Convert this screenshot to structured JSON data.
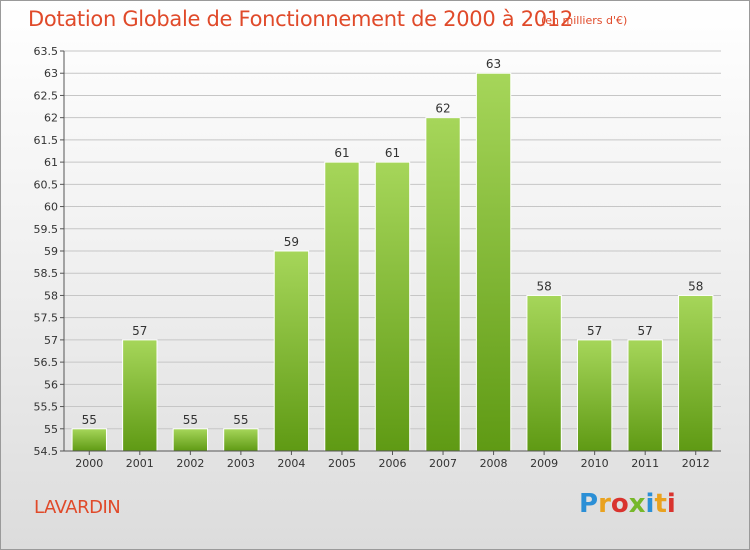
{
  "header": {
    "title": "Dotation Globale de Fonctionnement de 2000 à 2012",
    "subtitle": "(en milliers d'€)"
  },
  "footer": {
    "commune": "LAVARDIN",
    "logo": "Proxiti",
    "logo_colors": [
      "#2b8fd6",
      "#e9a21f",
      "#d9332e",
      "#77b82a",
      "#2b8fd6",
      "#e9a21f",
      "#d9332e"
    ]
  },
  "colors": {
    "bar_top": "#a6d65a",
    "bar_bottom": "#5f9a14",
    "grid": "#c6c6c6",
    "axis": "#555555",
    "text": "#333333",
    "accent": "#e04a2a"
  },
  "chart_data": {
    "type": "bar",
    "categories": [
      "2000",
      "2001",
      "2002",
      "2003",
      "2004",
      "2005",
      "2006",
      "2007",
      "2008",
      "2009",
      "2010",
      "2011",
      "2012"
    ],
    "values": [
      55,
      57,
      55,
      55,
      59,
      61,
      61,
      62,
      63,
      58,
      57,
      57,
      58
    ],
    "data_labels": [
      "55",
      "57",
      "55",
      "55",
      "59",
      "61",
      "61",
      "62",
      "63",
      "58",
      "57",
      "57",
      "58"
    ],
    "y_ticks": [
      "54.5",
      "55",
      "55.5",
      "56",
      "56.5",
      "57",
      "57.5",
      "58",
      "58.5",
      "59",
      "59.5",
      "60",
      "60.5",
      "61",
      "61.5",
      "62",
      "62.5",
      "63",
      "63.5"
    ],
    "ylim": [
      54.5,
      63.5
    ],
    "grid": true,
    "legend": false
  }
}
